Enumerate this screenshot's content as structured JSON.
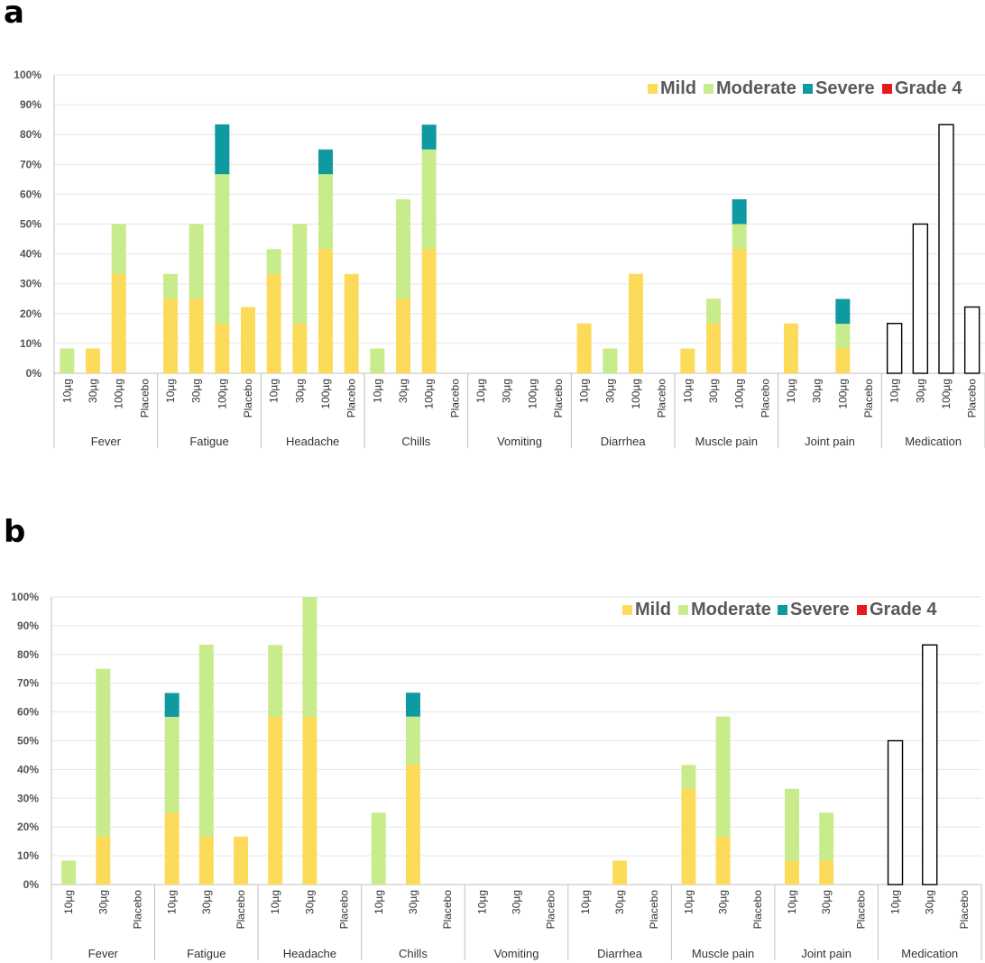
{
  "legend_colors": {
    "Mild": "#fcdb5b",
    "Moderate": "#c8ec8c",
    "Severe": "#0e9aa0",
    "Grade 4": "#e8191a"
  },
  "chart_data": [
    {
      "panel": "a",
      "type": "bar",
      "stacked": true,
      "ylim": [
        0,
        100
      ],
      "yticks": [
        "0%",
        "10%",
        "20%",
        "30%",
        "40%",
        "50%",
        "60%",
        "70%",
        "80%",
        "90%",
        "100%"
      ],
      "legend": [
        "Mild",
        "Moderate",
        "Severe",
        "Grade 4"
      ],
      "legend_position": "top-right",
      "groups": [
        {
          "name": "Fever",
          "doses": [
            "10µg",
            "30µg",
            "100µg",
            "Placebo"
          ],
          "bars": [
            {
              "Mild": 0,
              "Moderate": 8.3,
              "Severe": 0
            },
            {
              "Mild": 8.3,
              "Moderate": 0,
              "Severe": 0
            },
            {
              "Mild": 33.3,
              "Moderate": 16.7,
              "Severe": 0
            },
            {
              "Mild": 0,
              "Moderate": 0,
              "Severe": 0
            }
          ]
        },
        {
          "name": "Fatigue",
          "doses": [
            "10µg",
            "30µg",
            "100µg",
            "Placebo"
          ],
          "bars": [
            {
              "Mild": 25,
              "Moderate": 8.3,
              "Severe": 0
            },
            {
              "Mild": 25,
              "Moderate": 25,
              "Severe": 0
            },
            {
              "Mild": 16.7,
              "Moderate": 50,
              "Severe": 16.7
            },
            {
              "Mild": 22.2,
              "Moderate": 0,
              "Severe": 0
            }
          ]
        },
        {
          "name": "Headache",
          "doses": [
            "10µg",
            "30µg",
            "100µg",
            "Placebo"
          ],
          "bars": [
            {
              "Mild": 33.3,
              "Moderate": 8.3,
              "Severe": 0
            },
            {
              "Mild": 16.7,
              "Moderate": 33.3,
              "Severe": 0
            },
            {
              "Mild": 41.7,
              "Moderate": 25,
              "Severe": 8.3
            },
            {
              "Mild": 33.3,
              "Moderate": 0,
              "Severe": 0
            }
          ]
        },
        {
          "name": "Chills",
          "doses": [
            "10µg",
            "30µg",
            "100µg",
            "Placebo"
          ],
          "bars": [
            {
              "Mild": 0,
              "Moderate": 8.3,
              "Severe": 0
            },
            {
              "Mild": 25,
              "Moderate": 33.3,
              "Severe": 0
            },
            {
              "Mild": 41.7,
              "Moderate": 33.3,
              "Severe": 8.3
            },
            {
              "Mild": 0,
              "Moderate": 0,
              "Severe": 0
            }
          ]
        },
        {
          "name": "Vomiting",
          "doses": [
            "10µg",
            "30µg",
            "100µg",
            "Placebo"
          ],
          "bars": [
            {
              "Mild": 0,
              "Moderate": 0,
              "Severe": 0
            },
            {
              "Mild": 0,
              "Moderate": 0,
              "Severe": 0
            },
            {
              "Mild": 0,
              "Moderate": 0,
              "Severe": 0
            },
            {
              "Mild": 0,
              "Moderate": 0,
              "Severe": 0
            }
          ]
        },
        {
          "name": "Diarrhea",
          "doses": [
            "10µg",
            "30µg",
            "100µg",
            "Placebo"
          ],
          "bars": [
            {
              "Mild": 16.7,
              "Moderate": 0,
              "Severe": 0
            },
            {
              "Mild": 0,
              "Moderate": 8.3,
              "Severe": 0
            },
            {
              "Mild": 33.3,
              "Moderate": 0,
              "Severe": 0
            },
            {
              "Mild": 0,
              "Moderate": 0,
              "Severe": 0
            }
          ]
        },
        {
          "name": "Muscle pain",
          "doses": [
            "10µg",
            "30µg",
            "100µg",
            "Placebo"
          ],
          "bars": [
            {
              "Mild": 8.3,
              "Moderate": 0,
              "Severe": 0
            },
            {
              "Mild": 16.7,
              "Moderate": 8.3,
              "Severe": 0
            },
            {
              "Mild": 41.7,
              "Moderate": 8.3,
              "Severe": 8.3
            },
            {
              "Mild": 0,
              "Moderate": 0,
              "Severe": 0
            }
          ]
        },
        {
          "name": "Joint pain",
          "doses": [
            "10µg",
            "30µg",
            "100µg",
            "Placebo"
          ],
          "bars": [
            {
              "Mild": 16.7,
              "Moderate": 0,
              "Severe": 0
            },
            {
              "Mild": 0,
              "Moderate": 0,
              "Severe": 0
            },
            {
              "Mild": 8.3,
              "Moderate": 8.3,
              "Severe": 8.3
            },
            {
              "Mild": 0,
              "Moderate": 0,
              "Severe": 0
            }
          ]
        },
        {
          "name": "Medication",
          "doses": [
            "10µg",
            "30µg",
            "100µg",
            "Placebo"
          ],
          "outline": true,
          "bars": [
            {
              "Total": 16.7
            },
            {
              "Total": 50
            },
            {
              "Total": 83.3
            },
            {
              "Total": 22.2
            }
          ]
        }
      ]
    },
    {
      "panel": "b",
      "type": "bar",
      "stacked": true,
      "ylim": [
        0,
        100
      ],
      "yticks": [
        "0%",
        "10%",
        "20%",
        "30%",
        "40%",
        "50%",
        "60%",
        "70%",
        "80%",
        "90%",
        "100%"
      ],
      "legend": [
        "Mild",
        "Moderate",
        "Severe",
        "Grade 4"
      ],
      "legend_position": "top-right",
      "groups": [
        {
          "name": "Fever",
          "doses": [
            "10µg",
            "30µg",
            "Placebo"
          ],
          "bars": [
            {
              "Mild": 0,
              "Moderate": 8.3,
              "Severe": 0
            },
            {
              "Mild": 16.7,
              "Moderate": 58.3,
              "Severe": 0
            },
            {
              "Mild": 0,
              "Moderate": 0,
              "Severe": 0
            }
          ]
        },
        {
          "name": "Fatigue",
          "doses": [
            "10µg",
            "30µg",
            "Placebo"
          ],
          "bars": [
            {
              "Mild": 25,
              "Moderate": 33.3,
              "Severe": 8.3
            },
            {
              "Mild": 16.7,
              "Moderate": 66.7,
              "Severe": 0
            },
            {
              "Mild": 16.7,
              "Moderate": 0,
              "Severe": 0
            }
          ]
        },
        {
          "name": "Headache",
          "doses": [
            "10µg",
            "30µg",
            "Placebo"
          ],
          "bars": [
            {
              "Mild": 58.3,
              "Moderate": 25,
              "Severe": 0
            },
            {
              "Mild": 58.3,
              "Moderate": 41.7,
              "Severe": 0
            },
            {
              "Mild": 0,
              "Moderate": 0,
              "Severe": 0
            }
          ]
        },
        {
          "name": "Chills",
          "doses": [
            "10µg",
            "30µg",
            "Placebo"
          ],
          "bars": [
            {
              "Mild": 0,
              "Moderate": 25,
              "Severe": 0
            },
            {
              "Mild": 41.7,
              "Moderate": 16.7,
              "Severe": 8.3
            },
            {
              "Mild": 0,
              "Moderate": 0,
              "Severe": 0
            }
          ]
        },
        {
          "name": "Vomiting",
          "doses": [
            "10µg",
            "30µg",
            "Placebo"
          ],
          "bars": [
            {
              "Mild": 0,
              "Moderate": 0,
              "Severe": 0
            },
            {
              "Mild": 0,
              "Moderate": 0,
              "Severe": 0
            },
            {
              "Mild": 0,
              "Moderate": 0,
              "Severe": 0
            }
          ]
        },
        {
          "name": "Diarrhea",
          "doses": [
            "10µg",
            "30µg",
            "Placebo"
          ],
          "bars": [
            {
              "Mild": 0,
              "Moderate": 0,
              "Severe": 0
            },
            {
              "Mild": 8.3,
              "Moderate": 0,
              "Severe": 0
            },
            {
              "Mild": 0,
              "Moderate": 0,
              "Severe": 0
            }
          ]
        },
        {
          "name": "Muscle pain",
          "doses": [
            "10µg",
            "30µg",
            "Placebo"
          ],
          "bars": [
            {
              "Mild": 33.3,
              "Moderate": 8.3,
              "Severe": 0
            },
            {
              "Mild": 16.7,
              "Moderate": 41.7,
              "Severe": 0
            },
            {
              "Mild": 0,
              "Moderate": 0,
              "Severe": 0
            }
          ]
        },
        {
          "name": "Joint pain",
          "doses": [
            "10µg",
            "30µg",
            "Placebo"
          ],
          "bars": [
            {
              "Mild": 8.3,
              "Moderate": 25,
              "Severe": 0
            },
            {
              "Mild": 8.3,
              "Moderate": 16.7,
              "Severe": 0
            },
            {
              "Mild": 0,
              "Moderate": 0,
              "Severe": 0
            }
          ]
        },
        {
          "name": "Medication",
          "doses": [
            "10µg",
            "30µg",
            "Placebo"
          ],
          "outline": true,
          "bars": [
            {
              "Total": 50
            },
            {
              "Total": 83.3
            },
            {
              "Total": 0
            }
          ]
        }
      ]
    }
  ],
  "panel_labels": [
    "a",
    "b"
  ]
}
